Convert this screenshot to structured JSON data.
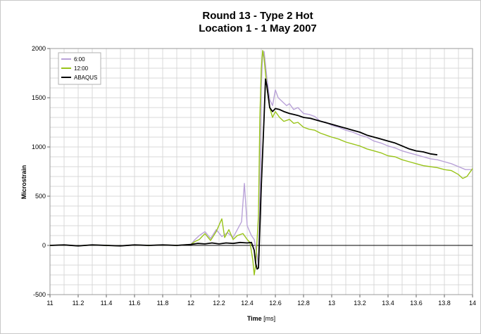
{
  "chart_data": {
    "type": "line",
    "title": [
      "Round 13 - Type 2 Hot",
      "Location 1 - 1 May 2007"
    ],
    "xlabel": {
      "bold": "Time",
      "unit": " [ms]"
    },
    "ylabel": "Microstrain",
    "xlim": [
      11,
      14
    ],
    "ylim": [
      -500,
      2000
    ],
    "xticks": [
      11,
      11.2,
      11.4,
      11.6,
      11.8,
      12,
      12.2,
      12.4,
      12.6,
      12.8,
      13,
      13.2,
      13.4,
      13.6,
      13.8,
      14
    ],
    "xtick_labels": [
      "11",
      "11.2",
      "11.4",
      "11.6",
      "11.8",
      "12",
      "12.2",
      "12.4",
      "12.6",
      "12.8",
      "13",
      "13.2",
      "13.4",
      "13.6",
      "13.8",
      "14"
    ],
    "yticks": [
      -500,
      0,
      500,
      1000,
      1500,
      2000
    ],
    "ytick_labels": [
      "-500",
      "0",
      "500",
      "1000",
      "1500",
      "2000"
    ],
    "x_minor_grid_step": 0.1,
    "y_minor_grid_step": 100,
    "grid": true,
    "legend_position": "top-left",
    "series": [
      {
        "name": "6:00",
        "color": "#b9a2d8",
        "points": [
          [
            11,
            0
          ],
          [
            11.1,
            5
          ],
          [
            11.2,
            -5
          ],
          [
            11.3,
            5
          ],
          [
            11.4,
            0
          ],
          [
            11.5,
            -5
          ],
          [
            11.6,
            5
          ],
          [
            11.7,
            0
          ],
          [
            11.8,
            5
          ],
          [
            11.9,
            0
          ],
          [
            12,
            10
          ],
          [
            12.03,
            60
          ],
          [
            12.06,
            100
          ],
          [
            12.1,
            140
          ],
          [
            12.14,
            70
          ],
          [
            12.18,
            160
          ],
          [
            12.22,
            90
          ],
          [
            12.26,
            130
          ],
          [
            12.3,
            80
          ],
          [
            12.33,
            160
          ],
          [
            12.36,
            240
          ],
          [
            12.38,
            630
          ],
          [
            12.4,
            200
          ],
          [
            12.43,
            100
          ],
          [
            12.45,
            60
          ],
          [
            12.47,
            -100
          ],
          [
            12.48,
            -200
          ],
          [
            12.49,
            500
          ],
          [
            12.5,
            1600
          ],
          [
            12.51,
            1960
          ],
          [
            12.52,
            1970
          ],
          [
            12.54,
            1700
          ],
          [
            12.56,
            1480
          ],
          [
            12.58,
            1420
          ],
          [
            12.6,
            1580
          ],
          [
            12.62,
            1500
          ],
          [
            12.65,
            1460
          ],
          [
            12.68,
            1420
          ],
          [
            12.7,
            1440
          ],
          [
            12.73,
            1380
          ],
          [
            12.76,
            1400
          ],
          [
            12.8,
            1340
          ],
          [
            12.84,
            1330
          ],
          [
            12.88,
            1310
          ],
          [
            12.92,
            1260
          ],
          [
            12.96,
            1250
          ],
          [
            13,
            1220
          ],
          [
            13.05,
            1200
          ],
          [
            13.1,
            1170
          ],
          [
            13.15,
            1150
          ],
          [
            13.2,
            1120
          ],
          [
            13.25,
            1100
          ],
          [
            13.3,
            1060
          ],
          [
            13.35,
            1040
          ],
          [
            13.4,
            1010
          ],
          [
            13.45,
            990
          ],
          [
            13.5,
            960
          ],
          [
            13.55,
            940
          ],
          [
            13.6,
            920
          ],
          [
            13.65,
            900
          ],
          [
            13.7,
            880
          ],
          [
            13.75,
            870
          ],
          [
            13.8,
            850
          ],
          [
            13.85,
            830
          ],
          [
            13.9,
            800
          ],
          [
            13.95,
            770
          ],
          [
            14,
            770
          ]
        ]
      },
      {
        "name": "12:00",
        "color": "#99c41a",
        "points": [
          [
            11,
            0
          ],
          [
            11.1,
            5
          ],
          [
            11.2,
            -5
          ],
          [
            11.3,
            5
          ],
          [
            11.4,
            0
          ],
          [
            11.5,
            -5
          ],
          [
            11.6,
            5
          ],
          [
            11.7,
            0
          ],
          [
            11.8,
            5
          ],
          [
            11.9,
            0
          ],
          [
            12,
            10
          ],
          [
            12.03,
            40
          ],
          [
            12.06,
            60
          ],
          [
            12.1,
            120
          ],
          [
            12.14,
            50
          ],
          [
            12.18,
            140
          ],
          [
            12.22,
            270
          ],
          [
            12.24,
            80
          ],
          [
            12.27,
            160
          ],
          [
            12.3,
            60
          ],
          [
            12.33,
            100
          ],
          [
            12.37,
            120
          ],
          [
            12.4,
            60
          ],
          [
            12.42,
            30
          ],
          [
            12.44,
            -150
          ],
          [
            12.45,
            -300
          ],
          [
            12.46,
            -200
          ],
          [
            12.48,
            300
          ],
          [
            12.49,
            1300
          ],
          [
            12.5,
            1800
          ],
          [
            12.51,
            1980
          ],
          [
            12.52,
            1900
          ],
          [
            12.54,
            1600
          ],
          [
            12.56,
            1400
          ],
          [
            12.58,
            1300
          ],
          [
            12.6,
            1360
          ],
          [
            12.63,
            1300
          ],
          [
            12.66,
            1260
          ],
          [
            12.7,
            1280
          ],
          [
            12.73,
            1240
          ],
          [
            12.76,
            1250
          ],
          [
            12.8,
            1200
          ],
          [
            12.84,
            1180
          ],
          [
            12.88,
            1170
          ],
          [
            12.92,
            1140
          ],
          [
            12.96,
            1120
          ],
          [
            13,
            1100
          ],
          [
            13.05,
            1080
          ],
          [
            13.1,
            1050
          ],
          [
            13.15,
            1030
          ],
          [
            13.2,
            1010
          ],
          [
            13.25,
            980
          ],
          [
            13.3,
            960
          ],
          [
            13.35,
            940
          ],
          [
            13.4,
            910
          ],
          [
            13.45,
            900
          ],
          [
            13.5,
            870
          ],
          [
            13.55,
            850
          ],
          [
            13.6,
            830
          ],
          [
            13.65,
            810
          ],
          [
            13.7,
            800
          ],
          [
            13.75,
            790
          ],
          [
            13.8,
            770
          ],
          [
            13.85,
            760
          ],
          [
            13.9,
            720
          ],
          [
            13.93,
            680
          ],
          [
            13.96,
            700
          ],
          [
            14,
            780
          ]
        ]
      },
      {
        "name": "ABAQUS",
        "color": "#000000",
        "points": [
          [
            11,
            0
          ],
          [
            11.1,
            5
          ],
          [
            11.2,
            -5
          ],
          [
            11.3,
            5
          ],
          [
            11.4,
            0
          ],
          [
            11.5,
            -5
          ],
          [
            11.6,
            5
          ],
          [
            11.7,
            0
          ],
          [
            11.8,
            5
          ],
          [
            11.9,
            0
          ],
          [
            12,
            10
          ],
          [
            12.05,
            20
          ],
          [
            12.1,
            15
          ],
          [
            12.15,
            25
          ],
          [
            12.2,
            15
          ],
          [
            12.25,
            25
          ],
          [
            12.3,
            20
          ],
          [
            12.35,
            30
          ],
          [
            12.4,
            25
          ],
          [
            12.43,
            30
          ],
          [
            12.45,
            -50
          ],
          [
            12.46,
            -180
          ],
          [
            12.47,
            -240
          ],
          [
            12.48,
            -230
          ],
          [
            12.5,
            600
          ],
          [
            12.52,
            1300
          ],
          [
            12.53,
            1690
          ],
          [
            12.54,
            1620
          ],
          [
            12.56,
            1400
          ],
          [
            12.58,
            1360
          ],
          [
            12.6,
            1390
          ],
          [
            12.63,
            1380
          ],
          [
            12.66,
            1360
          ],
          [
            12.7,
            1340
          ],
          [
            12.73,
            1330
          ],
          [
            12.76,
            1320
          ],
          [
            12.8,
            1300
          ],
          [
            12.85,
            1290
          ],
          [
            12.9,
            1270
          ],
          [
            12.95,
            1250
          ],
          [
            13,
            1230
          ],
          [
            13.05,
            1210
          ],
          [
            13.1,
            1190
          ],
          [
            13.15,
            1170
          ],
          [
            13.2,
            1150
          ],
          [
            13.25,
            1120
          ],
          [
            13.3,
            1100
          ],
          [
            13.35,
            1080
          ],
          [
            13.4,
            1060
          ],
          [
            13.45,
            1040
          ],
          [
            13.5,
            1010
          ],
          [
            13.55,
            980
          ],
          [
            13.6,
            960
          ],
          [
            13.65,
            950
          ],
          [
            13.7,
            930
          ],
          [
            13.75,
            920
          ]
        ]
      }
    ]
  }
}
